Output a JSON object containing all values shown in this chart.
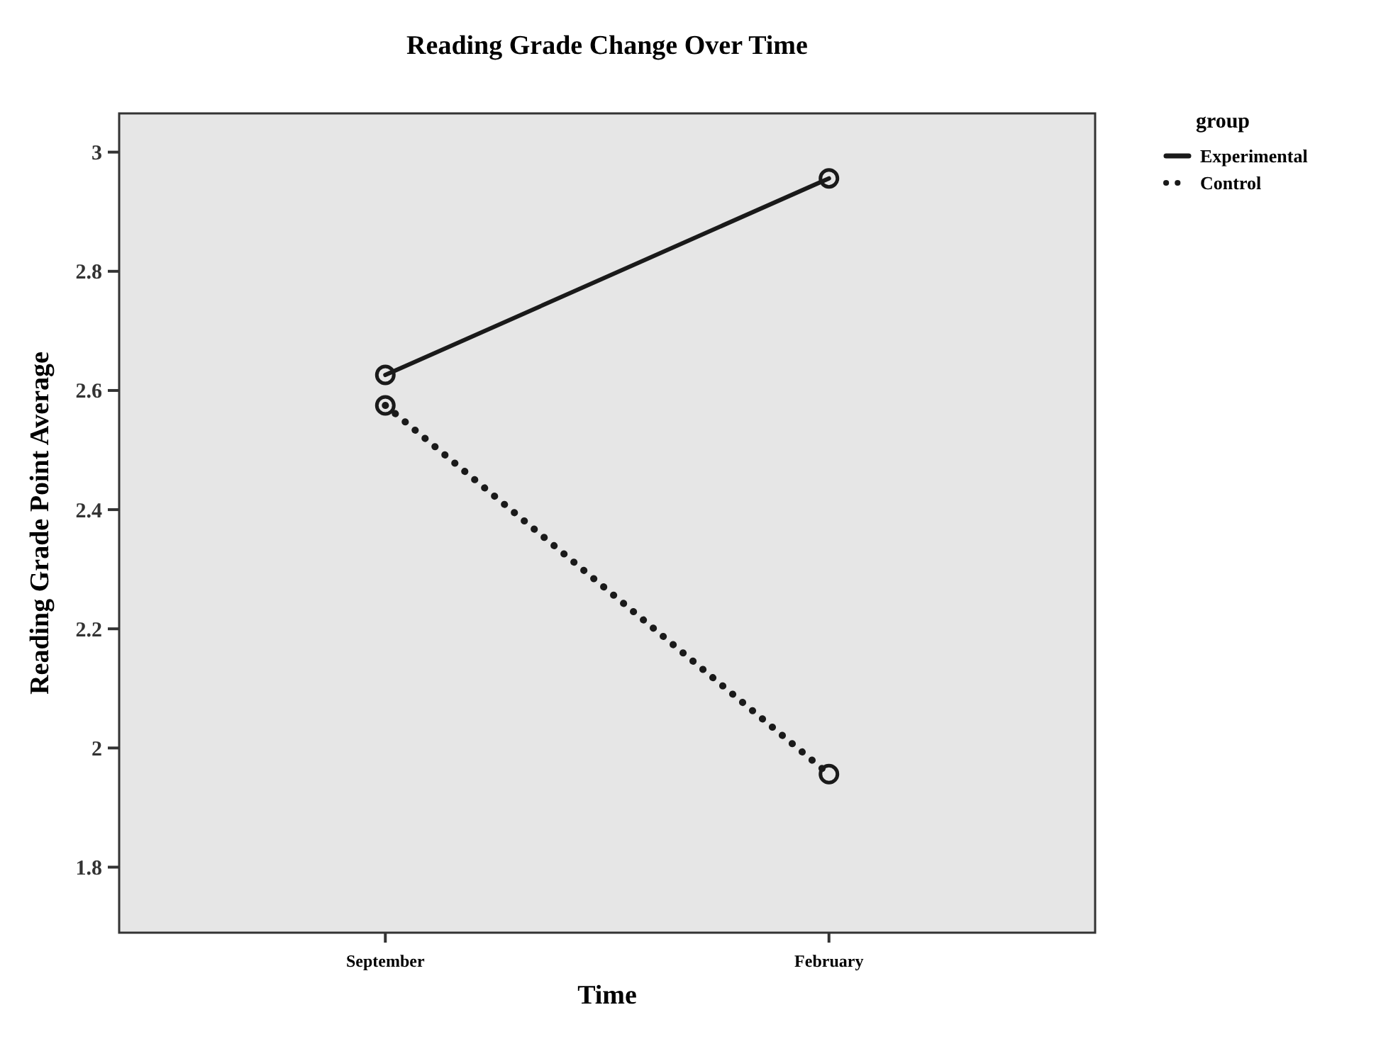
{
  "chart_data": {
    "type": "line",
    "title": "Reading Grade Change Over Time",
    "xlabel": "Time",
    "ylabel": "Reading Grade Point Average",
    "legend_title": "group",
    "categories": [
      "September",
      "February"
    ],
    "series": [
      {
        "name": "Experimental",
        "color": "#1a1a1a",
        "values": [
          2.626,
          2.956
        ],
        "line_style": "solid"
      },
      {
        "name": "Control",
        "color": "#1a1a1a",
        "values": [
          2.575,
          1.956
        ],
        "line_style": "dotted"
      }
    ],
    "ylim": [
      1.69,
      3.065
    ],
    "yticks": [
      {
        "value": 1.8,
        "label": "1.8"
      },
      2,
      {
        "value": 2.2,
        "label": "2.2"
      },
      {
        "value": 2.4,
        "label": "2.4"
      },
      {
        "value": 2.6,
        "label": "2.6"
      },
      {
        "value": 2.8,
        "label": "2.8"
      },
      3
    ],
    "grid": false,
    "legend": "top right",
    "marker": "circle"
  }
}
